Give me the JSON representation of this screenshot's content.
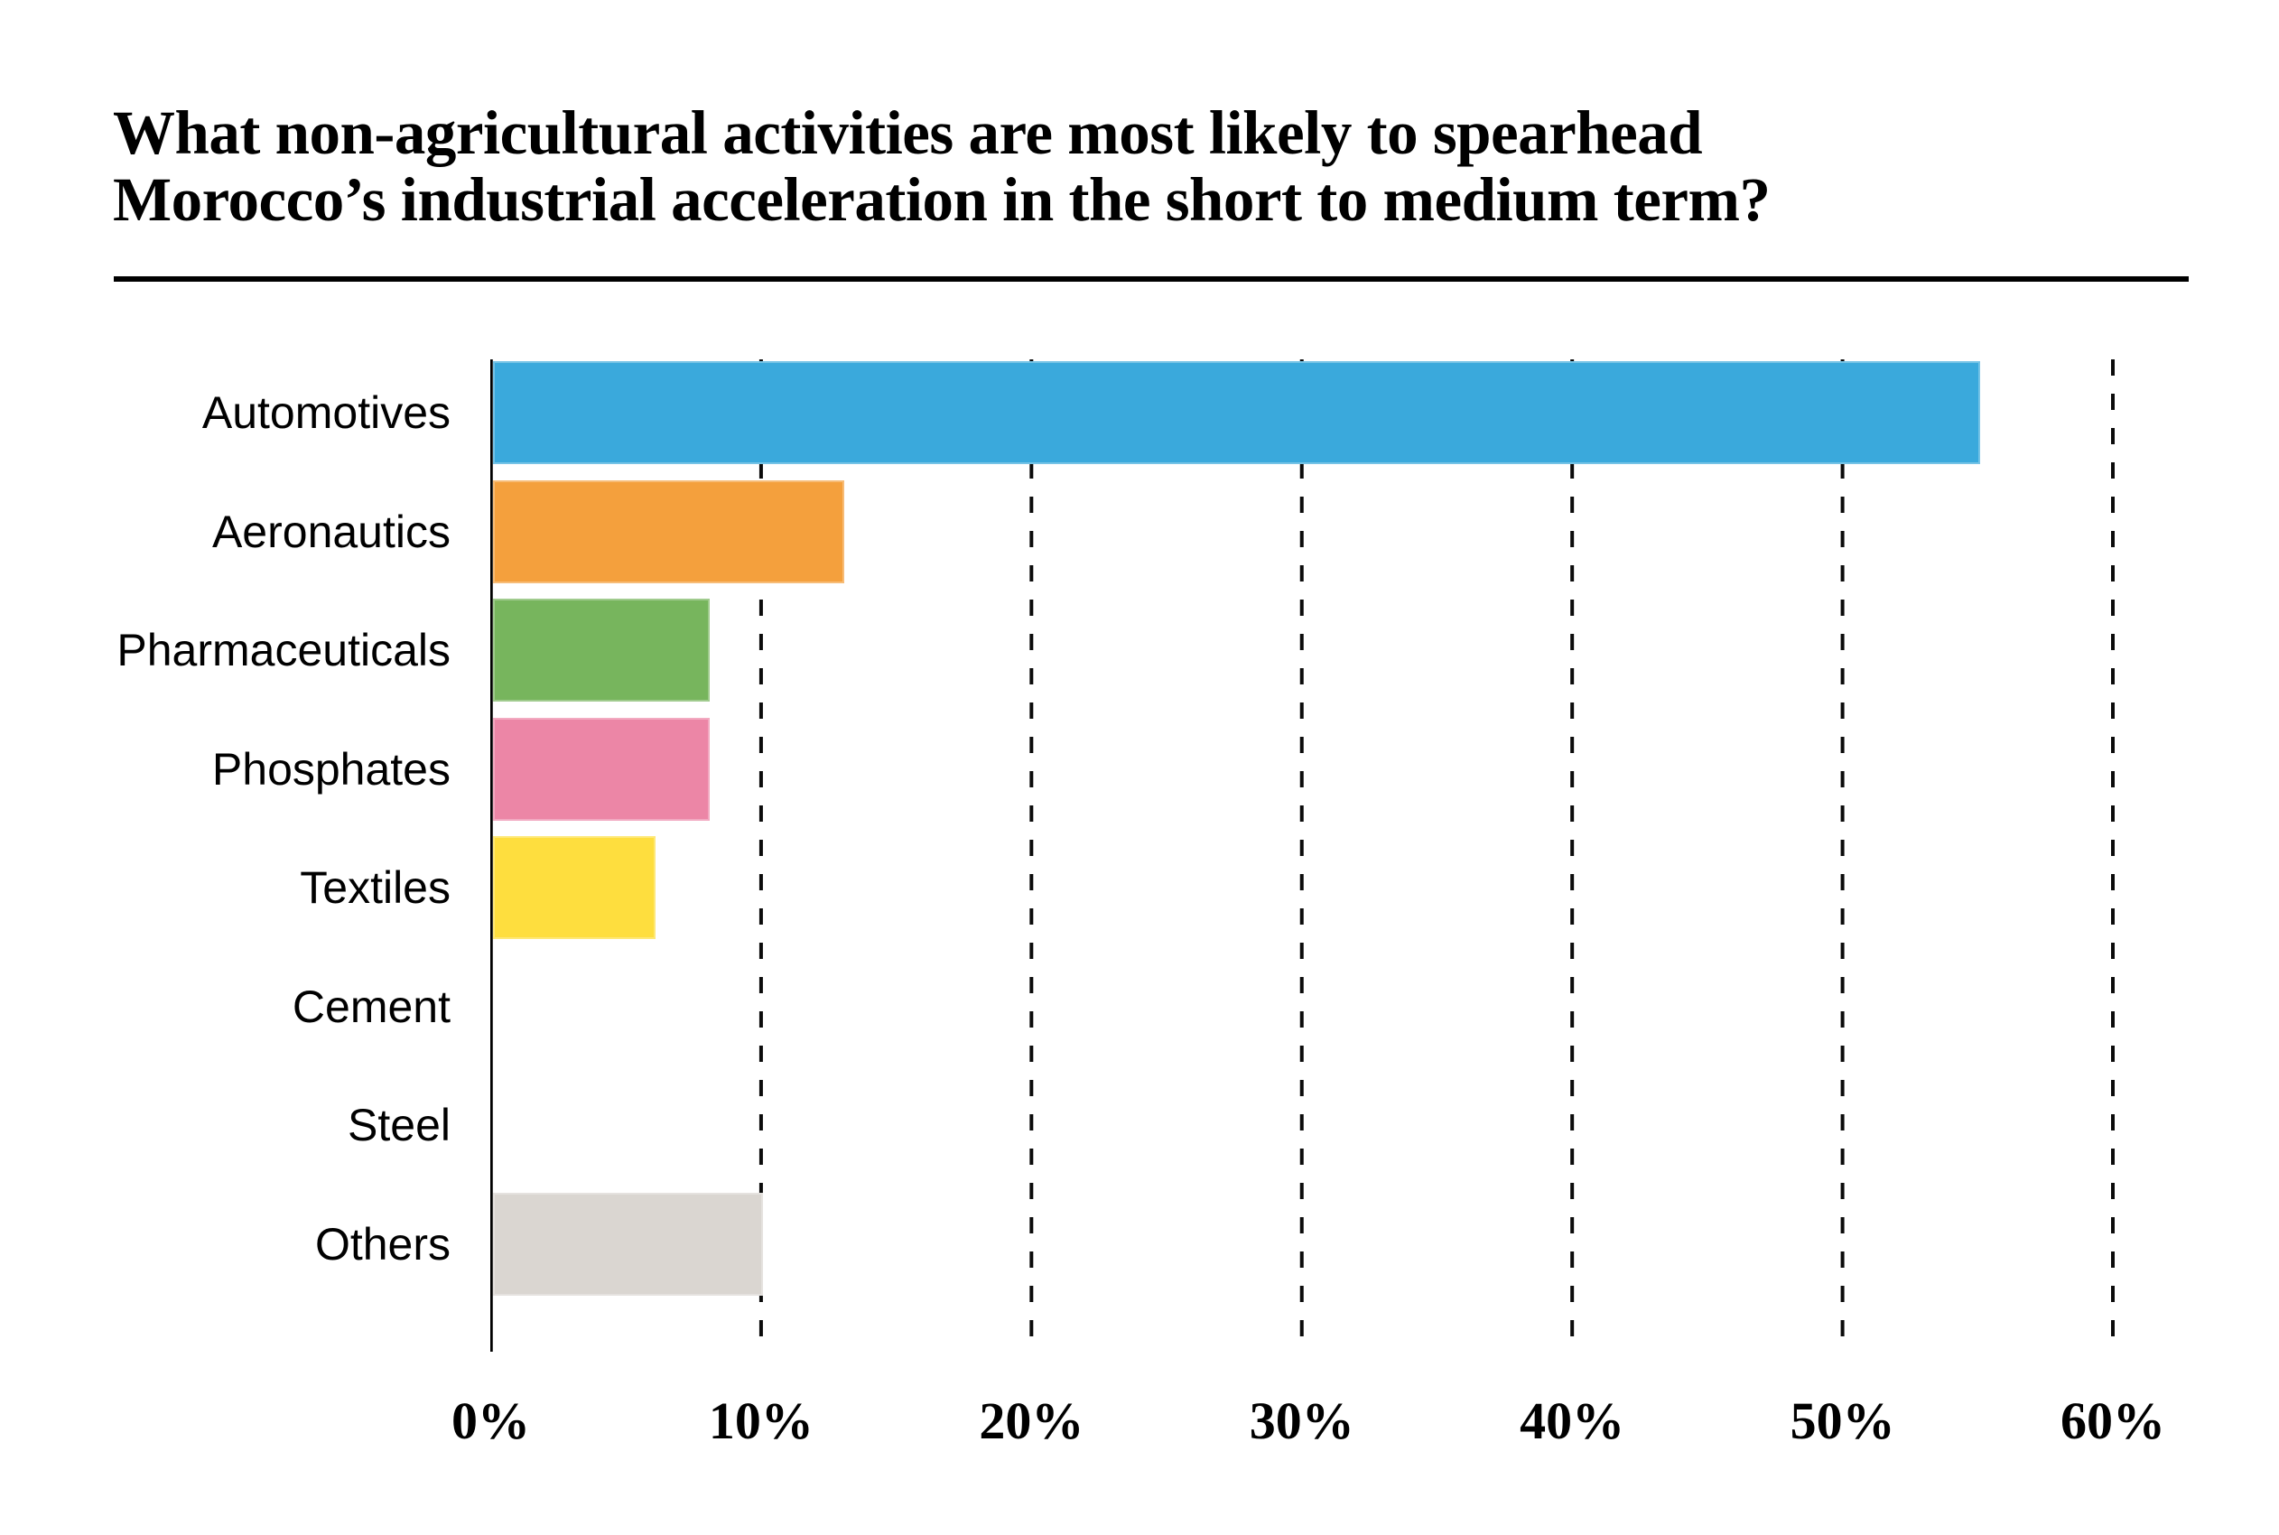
{
  "page": {
    "background": "#ffffff",
    "text_color": "#000000"
  },
  "header": {
    "title_line1": "What non-agricultural activities are most likely to spearhead",
    "title_line2": "Morocco’s industrial acceleration in the short to medium term?"
  },
  "chart_data": {
    "type": "bar",
    "orientation": "horizontal",
    "categories": [
      "Automotives",
      "Aeronautics",
      "Pharmaceuticals",
      "Phosphates",
      "Textiles",
      "Cement",
      "Steel",
      "Others"
    ],
    "values": [
      55,
      13,
      8,
      8,
      6,
      0,
      0,
      10
    ],
    "bar_colors": [
      "#3AA9DC",
      "#F4A03D",
      "#77B55D",
      "#EC86A6",
      "#FEDE3E",
      null,
      null,
      "#DAD6D1"
    ],
    "x_ticks": [
      {
        "value": 0,
        "label": "0%"
      },
      {
        "value": 10,
        "label": "10%"
      },
      {
        "value": 20,
        "label": "20%"
      },
      {
        "value": 30,
        "label": "30%"
      },
      {
        "value": 40,
        "label": "40%"
      },
      {
        "value": 50,
        "label": "50%"
      },
      {
        "value": 60,
        "label": "60%"
      }
    ],
    "xlim": [
      0,
      60
    ],
    "xlabel": "",
    "ylabel": "",
    "grid": "vertical-dashed",
    "axis_color": "#000000",
    "gridline_color": "#0b0b0b",
    "legend": "none"
  }
}
